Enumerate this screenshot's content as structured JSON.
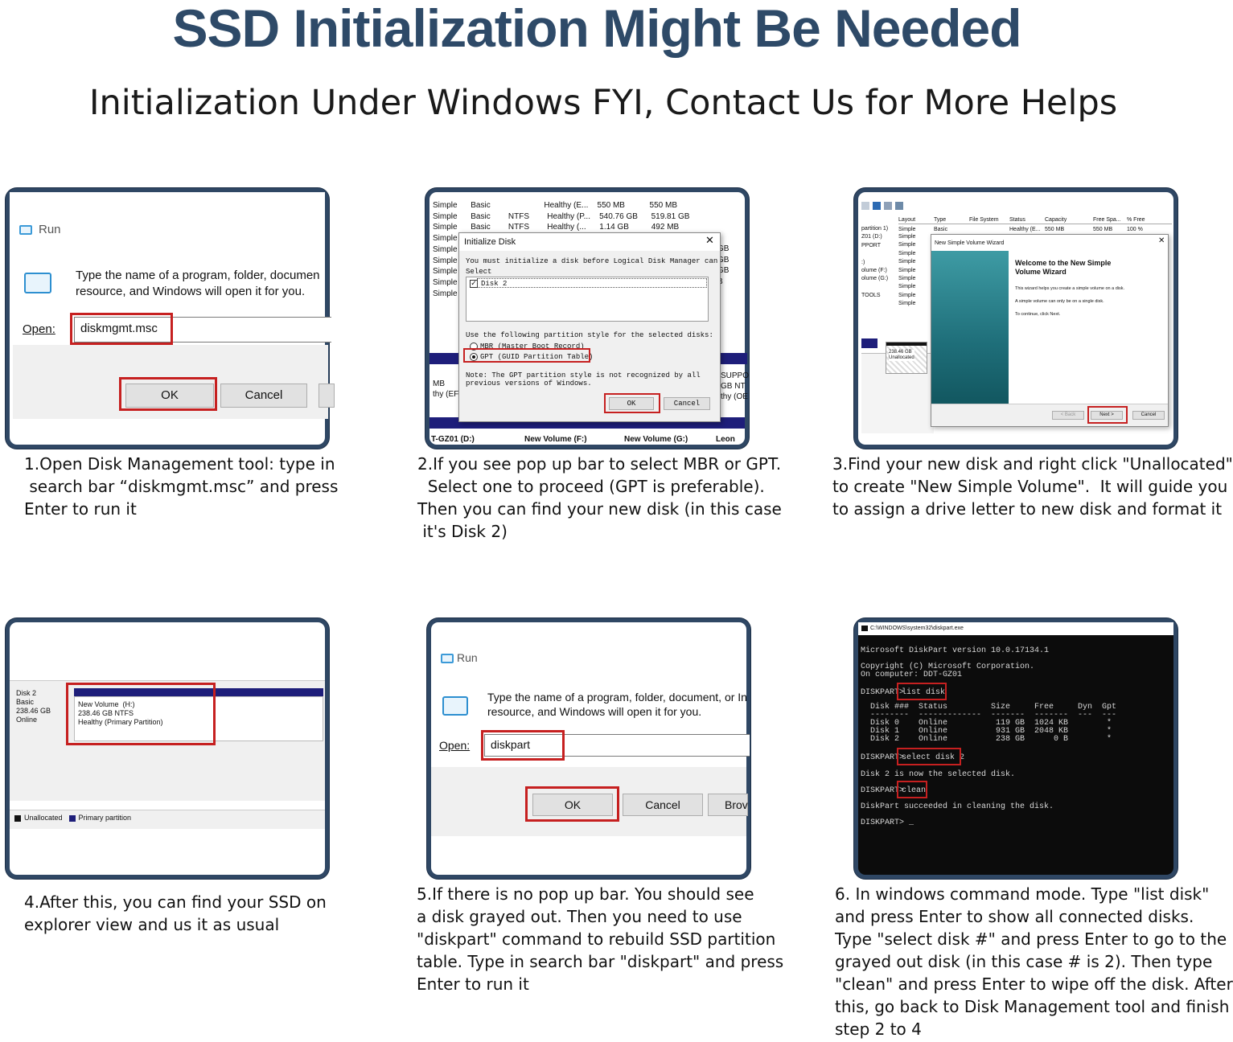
{
  "title": "SSD Initialization Might Be Needed",
  "subtitle": "Initialization Under Windows FYI, Contact Us for More Helps",
  "steps": {
    "s1": {
      "caption": "1.Open Disk Management tool: type in\n search bar “diskmgmt.msc” and press\nEnter to run it",
      "dialog": {
        "title": "Run",
        "prompt": "Type the name of a program, folder, documen\nresource, and Windows will open it for you.",
        "open_label": "Open:",
        "input": "diskmgmt.msc",
        "ok": "OK",
        "cancel": "Cancel"
      }
    },
    "s2": {
      "caption": "2.If you see pop up bar to select MBR or GPT.\n  Select one to proceed (GPT is preferable).\nThen you can find your new disk (in this case\n it's Disk 2)",
      "table_rows": [
        "Simple      Basic                        Healthy (E...    550 MB           550 MB",
        "Simple      Basic        NTFS        Healthy (P...    540.76 GB      519.81 GB",
        "Simple      Basic        NTFS        Healthy (...      1.14 GB          492 MB",
        "Simple",
        "Simple",
        "Simple",
        "Simple",
        "Simple",
        "Simple"
      ],
      "right_frag": [
        "GB",
        "GB",
        "GB",
        "B"
      ],
      "dialog": {
        "title": "Initialize Disk",
        "close": "✕",
        "line1": "You must initialize a disk before Logical Disk Manager can",
        "line2": "Select",
        "disk": "Disk 2",
        "partition_label": "Use the following partition style for the selected disks:",
        "mbr": "MBR (Master Boot Record)",
        "gpt": "GPT (GUID Partition Table)",
        "note": "Note: The GPT partition style is not recognized by all\nprevious versions of Windows.",
        "ok": "OK",
        "cancel": "Cancel"
      },
      "left_frag": [
        "MB",
        "thy (EFI"
      ],
      "right_frag2": [
        "SUPPO",
        "GB NT",
        "thy (OE"
      ],
      "bottom": [
        "T-GZ01 (D:)",
        "New Volume (F:)",
        "New Volume (G:)",
        "Leon"
      ]
    },
    "s3": {
      "caption": "3.Find your new disk and right click \"Unallocated\"\nto create \"New Simple Volume\".  It will guide you\nto assign a drive letter to new disk and format it",
      "columns": [
        "Layout",
        "Type",
        "File System",
        "Status",
        "Capacity",
        "Free Spa...",
        "% Free"
      ],
      "first_row": [
        "Simple",
        "Basic",
        "",
        "Healthy (E...",
        "550 MB",
        "550 MB",
        "100 %"
      ],
      "left_rows": [
        "partition 1)",
        "Z01 (D:)",
        "PPORT",
        "",
        ":)",
        "olume (F:)",
        "olume (G:)",
        "",
        "TOOLS"
      ],
      "layout_rows": [
        "Simple",
        "Simple",
        "Simple",
        "Simple",
        "Simple",
        "Simple",
        "Simple",
        "Simple",
        "Simple"
      ],
      "wizard": {
        "title": "New Simple Volume Wizard",
        "heading": "Welcome to the New Simple\nVolume Wizard",
        "p1": "This wizard helps you create a simple volume on a disk.",
        "p2": "A simple volume can only be on a single disk.",
        "p3": "To continue, click Next.",
        "back": "< Back",
        "next": "Next >",
        "cancel": "Cancel"
      },
      "unalloc": "238.46 GB\nUnallocated"
    },
    "s4": {
      "caption": "4.After this, you can find your SSD on\nexplorer view and us it as usual",
      "disk_label": "Disk 2\nBasic\n238.46 GB\nOnline",
      "volume": "New Volume  (H:)\n238.46 GB NTFS\nHealthy (Primary Partition)",
      "legend_unalloc": "Unallocated",
      "legend_primary": "Primary partition"
    },
    "s5": {
      "caption": "5.If there is no pop up bar. You should see\na disk grayed out. Then you need to use\n\"diskpart\" command to rebuild SSD partition\ntable. Type in search bar \"diskpart\" and press\nEnter to run it",
      "dialog": {
        "title": "Run",
        "prompt": "Type the name of a program, folder, document, or In\nresource, and Windows will open it for you.",
        "open_label": "Open:",
        "input": "diskpart",
        "ok": "OK",
        "cancel": "Cancel",
        "browse": "Brov"
      }
    },
    "s6": {
      "caption": "6. In windows command mode. Type \"list disk\"\nand press Enter to show all connected disks.\nType \"select disk #\" and press Enter to go to the\ngrayed out disk (in this case # is 2). Then type\n\"clean\" and press Enter to wipe off the disk. After\nthis, go back to Disk Management tool and finish\nstep 2 to 4",
      "window_title": "C:\\WINDOWS\\system32\\diskpart.exe",
      "version": "Microsoft DiskPart version 10.0.17134.1",
      "copyright": "Copyright (C) Microsoft Corporation.\nOn computer: DDT-GZ01",
      "prompt": "DISKPART>",
      "cmd1": "list disk",
      "table": "  Disk ###  Status         Size     Free     Dyn  Gpt\n  --------  -------------  -------  -------  ---  ---\n  Disk 0    Online          119 GB  1024 KB        *\n  Disk 1    Online          931 GB  2048 KB        *\n  Disk 2    Online          238 GB      0 B        *",
      "cmd2": "select disk 2",
      "msg2": "Disk 2 is now the selected disk.",
      "cmd3": "clean",
      "msg3": "DiskPart succeeded in cleaning the disk.",
      "final": "DISKPART> _"
    }
  },
  "colors": {
    "title": "#2e4a68",
    "frame": "#2f4764",
    "highlight": "#c62020",
    "console_bg": "#0c0c0c",
    "wizard_teal": "#1f6f7a"
  }
}
